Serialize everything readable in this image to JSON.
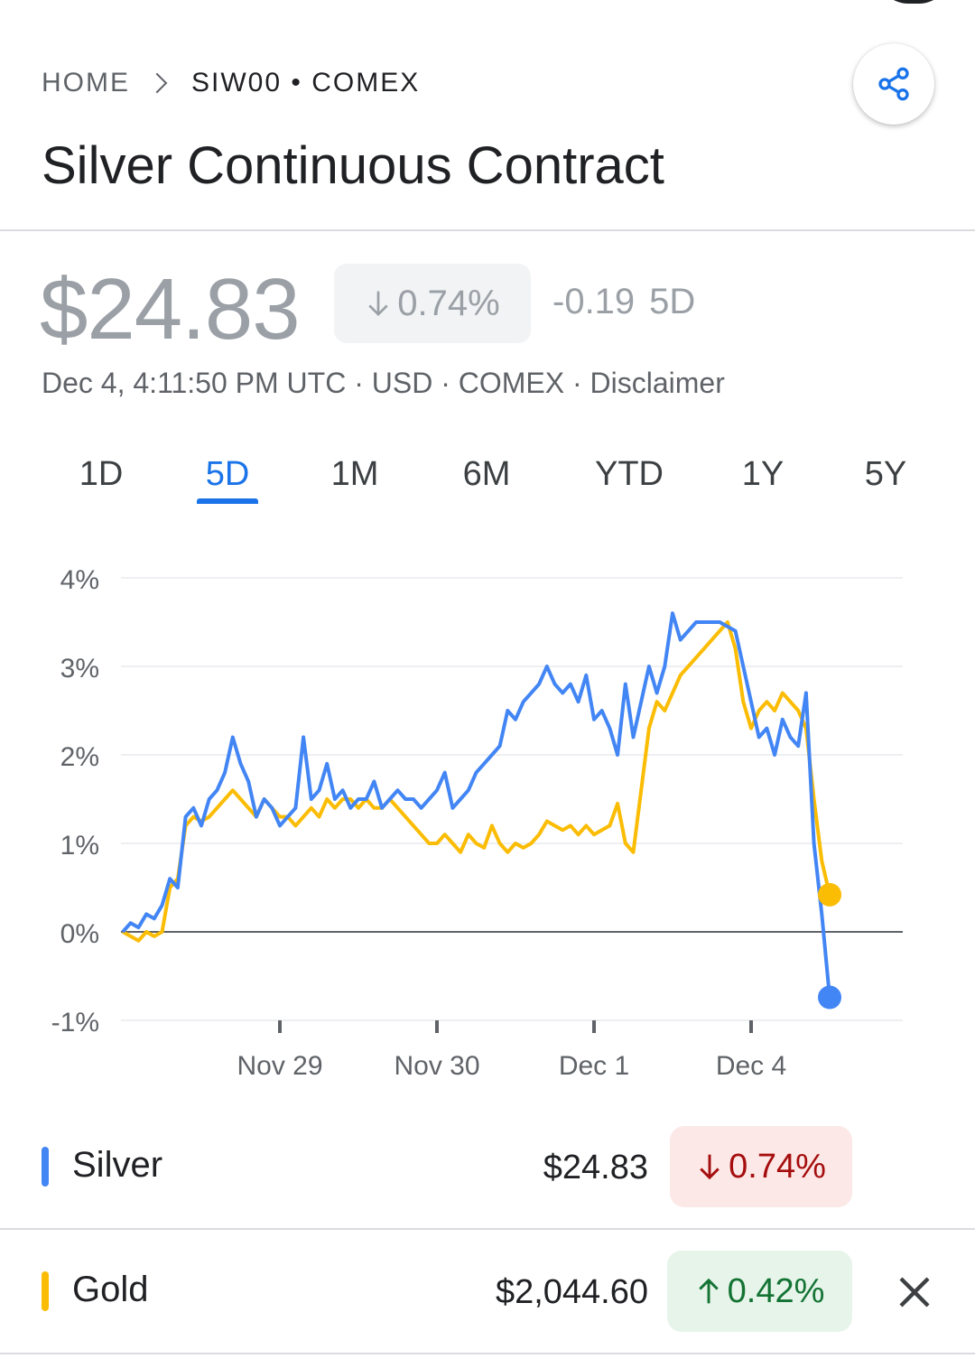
{
  "breadcrumb": {
    "home": "HOME",
    "current": "SIW00 • COMEX"
  },
  "title": "Silver Continuous Contract",
  "quote": {
    "price": "$24.83",
    "change_percent": "0.74%",
    "change_direction": "down",
    "change_absolute": "-0.19",
    "period": "5D"
  },
  "meta": "Dec 4, 4:11:50 PM UTC · USD · COMEX · Disclaimer",
  "tabs": [
    {
      "label": "1D",
      "active": false
    },
    {
      "label": "5D",
      "active": true
    },
    {
      "label": "1M",
      "active": false
    },
    {
      "label": "6M",
      "active": false
    },
    {
      "label": "YTD",
      "active": false
    },
    {
      "label": "1Y",
      "active": false
    },
    {
      "label": "5Y",
      "active": false
    }
  ],
  "colors": {
    "silver": "#4285f4",
    "gold": "#fbbc04",
    "accent": "#1a73e8",
    "down": "#a50e0e",
    "up": "#137333"
  },
  "chart_data": {
    "type": "line",
    "ylim": [
      -1,
      4
    ],
    "y_ticks": [
      4,
      3,
      2,
      1,
      0,
      -1
    ],
    "y_tick_labels": [
      "4%",
      "3%",
      "2%",
      "1%",
      "0%",
      "-1%"
    ],
    "x_tick_labels": [
      "Nov 29",
      "Nov 30",
      "Dec 1",
      "Dec 4"
    ],
    "xlim": [
      0,
      5
    ],
    "x_ticks": [
      1,
      2,
      3,
      4
    ],
    "grid": true,
    "series": [
      {
        "name": "Silver",
        "color": "#4285f4",
        "x": [
          0,
          0.05,
          0.1,
          0.15,
          0.2,
          0.25,
          0.3,
          0.35,
          0.4,
          0.45,
          0.5,
          0.55,
          0.6,
          0.65,
          0.7,
          0.75,
          0.8,
          0.85,
          0.9,
          0.95,
          1.0,
          1.05,
          1.1,
          1.15,
          1.2,
          1.25,
          1.3,
          1.35,
          1.4,
          1.45,
          1.5,
          1.55,
          1.6,
          1.65,
          1.7,
          1.75,
          1.8,
          1.85,
          1.9,
          1.95,
          2.0,
          2.05,
          2.1,
          2.15,
          2.2,
          2.25,
          2.3,
          2.35,
          2.4,
          2.45,
          2.5,
          2.55,
          2.6,
          2.65,
          2.7,
          2.75,
          2.8,
          2.85,
          2.9,
          2.95,
          3.0,
          3.05,
          3.1,
          3.15,
          3.2,
          3.25,
          3.3,
          3.35,
          3.4,
          3.45,
          3.5,
          3.55,
          3.6,
          3.65,
          3.7,
          3.75,
          3.8,
          3.85,
          3.9,
          3.95,
          4.0,
          4.05,
          4.1,
          4.15,
          4.2,
          4.25,
          4.3,
          4.35,
          4.4,
          4.45,
          4.5
        ],
        "y": [
          0.0,
          0.1,
          0.05,
          0.2,
          0.15,
          0.3,
          0.6,
          0.5,
          1.3,
          1.4,
          1.2,
          1.5,
          1.6,
          1.8,
          2.2,
          1.9,
          1.7,
          1.3,
          1.5,
          1.4,
          1.2,
          1.3,
          1.4,
          2.2,
          1.5,
          1.6,
          1.9,
          1.5,
          1.6,
          1.4,
          1.5,
          1.5,
          1.7,
          1.4,
          1.5,
          1.6,
          1.5,
          1.5,
          1.4,
          1.5,
          1.6,
          1.8,
          1.4,
          1.5,
          1.6,
          1.8,
          1.9,
          2.0,
          2.1,
          2.5,
          2.4,
          2.6,
          2.7,
          2.8,
          3.0,
          2.8,
          2.7,
          2.8,
          2.6,
          2.9,
          2.4,
          2.5,
          2.3,
          2.0,
          2.8,
          2.2,
          2.6,
          3.0,
          2.7,
          3.0,
          3.6,
          3.3,
          3.4,
          3.5,
          3.5,
          3.5,
          3.5,
          3.45,
          3.4,
          3.0,
          2.6,
          2.2,
          2.3,
          2.0,
          2.4,
          2.2,
          2.1,
          2.7,
          1.0,
          0.2,
          -0.74
        ]
      },
      {
        "name": "Gold",
        "color": "#fbbc04",
        "x": [
          0,
          0.05,
          0.1,
          0.15,
          0.2,
          0.25,
          0.3,
          0.35,
          0.4,
          0.45,
          0.5,
          0.55,
          0.6,
          0.65,
          0.7,
          0.75,
          0.8,
          0.85,
          0.9,
          0.95,
          1.0,
          1.05,
          1.1,
          1.15,
          1.2,
          1.25,
          1.3,
          1.35,
          1.4,
          1.45,
          1.5,
          1.55,
          1.6,
          1.65,
          1.7,
          1.75,
          1.8,
          1.85,
          1.9,
          1.95,
          2.0,
          2.05,
          2.1,
          2.15,
          2.2,
          2.25,
          2.3,
          2.35,
          2.4,
          2.45,
          2.5,
          2.55,
          2.6,
          2.65,
          2.7,
          2.75,
          2.8,
          2.85,
          2.9,
          2.95,
          3.0,
          3.05,
          3.1,
          3.15,
          3.2,
          3.25,
          3.3,
          3.35,
          3.4,
          3.45,
          3.5,
          3.55,
          3.6,
          3.65,
          3.7,
          3.75,
          3.8,
          3.85,
          3.9,
          3.95,
          4.0,
          4.05,
          4.1,
          4.15,
          4.2,
          4.25,
          4.3,
          4.35,
          4.4,
          4.45,
          4.5
        ],
        "y": [
          0.0,
          -0.05,
          -0.1,
          0.0,
          -0.05,
          0.0,
          0.5,
          0.6,
          1.2,
          1.3,
          1.25,
          1.3,
          1.4,
          1.5,
          1.6,
          1.5,
          1.4,
          1.3,
          1.5,
          1.4,
          1.3,
          1.3,
          1.2,
          1.3,
          1.4,
          1.3,
          1.5,
          1.4,
          1.5,
          1.5,
          1.4,
          1.5,
          1.4,
          1.4,
          1.5,
          1.4,
          1.3,
          1.2,
          1.1,
          1.0,
          1.0,
          1.1,
          1.0,
          0.9,
          1.1,
          1.0,
          0.95,
          1.2,
          1.0,
          0.9,
          1.0,
          0.95,
          1.0,
          1.1,
          1.25,
          1.2,
          1.15,
          1.2,
          1.1,
          1.2,
          1.1,
          1.15,
          1.2,
          1.45,
          1.0,
          0.9,
          1.6,
          2.3,
          2.6,
          2.5,
          2.7,
          2.9,
          3.0,
          3.1,
          3.2,
          3.3,
          3.4,
          3.5,
          3.2,
          2.6,
          2.3,
          2.5,
          2.6,
          2.5,
          2.7,
          2.6,
          2.5,
          2.3,
          1.5,
          0.8,
          0.42
        ]
      }
    ]
  },
  "legend": [
    {
      "name": "Silver",
      "price": "$24.83",
      "change": "0.74%",
      "direction": "down"
    },
    {
      "name": "Gold",
      "price": "$2,044.60",
      "change": "0.42%",
      "direction": "up"
    }
  ]
}
